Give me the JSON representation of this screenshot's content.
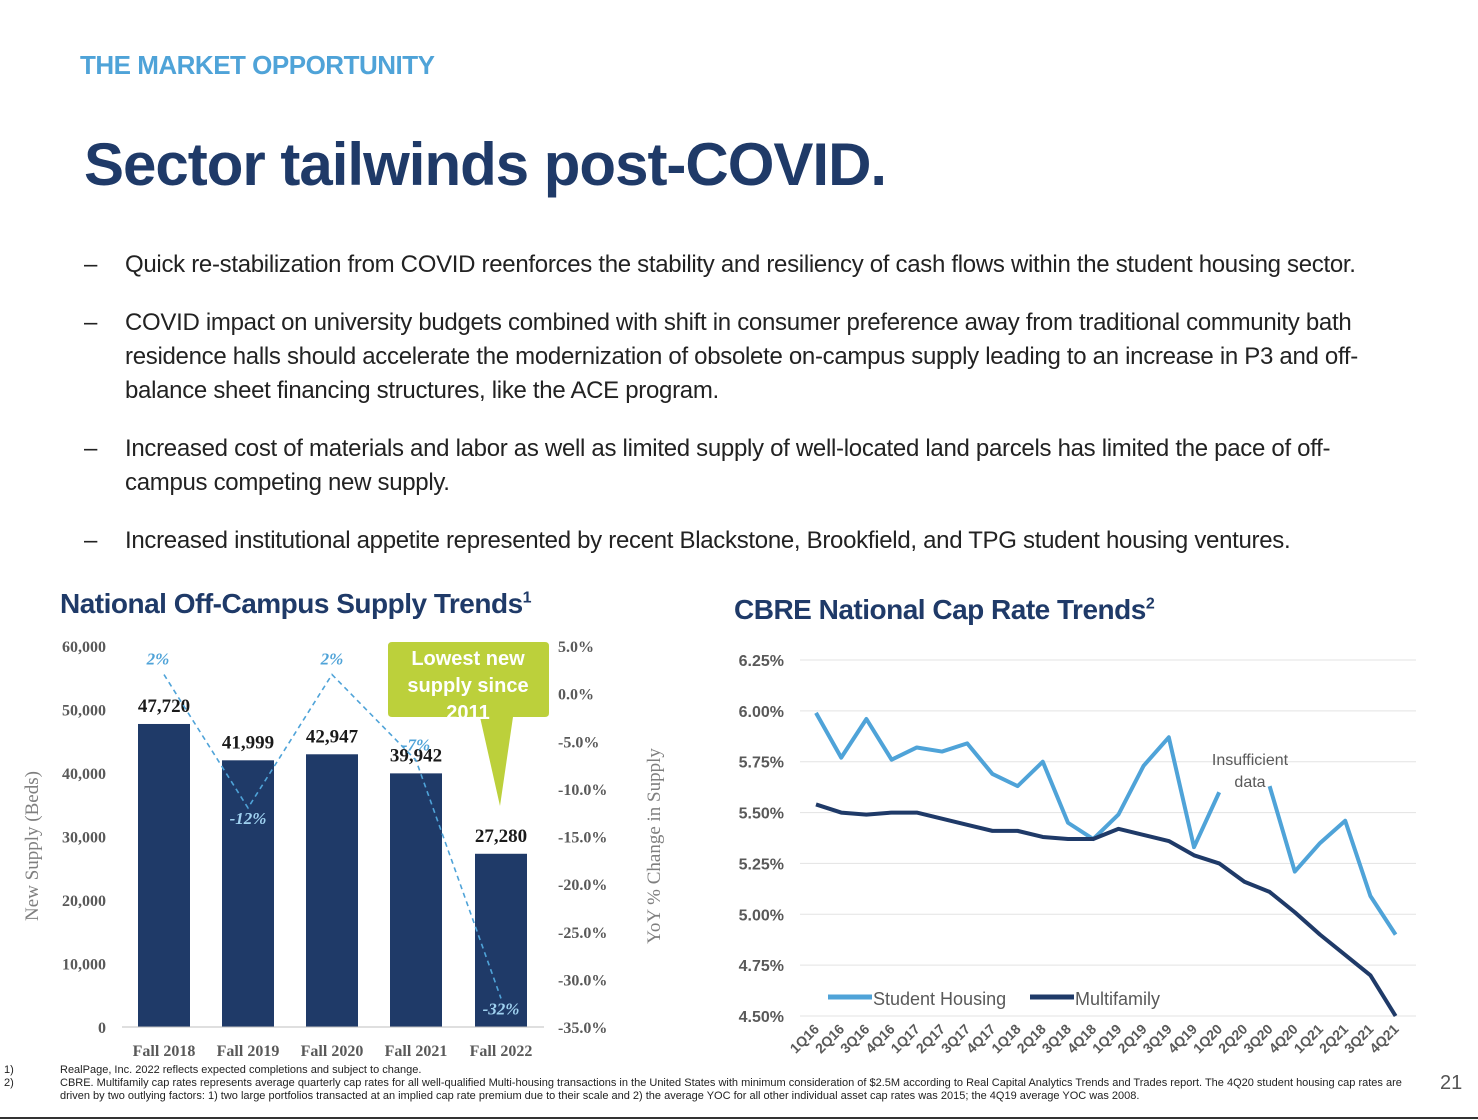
{
  "header": {
    "section_label": "THE MARKET OPPORTUNITY",
    "title": "Sector tailwinds post-COVID."
  },
  "bullets": [
    {
      "marker": "–",
      "text": "Quick re-stabilization from COVID reenforces the stability and resiliency of cash flows within the student housing sector."
    },
    {
      "marker": "–",
      "text": "COVID impact on university budgets combined with shift in consumer preference away from traditional community bath residence halls should accelerate the modernization of obsolete on-campus supply leading to an increase in P3 and off-balance sheet financing structures, like the ACE program."
    },
    {
      "marker": "–",
      "text": "Increased cost of materials and labor as well as limited supply of well-located land parcels has limited the pace of off-campus competing new supply."
    },
    {
      "marker": "–",
      "text": "Increased institutional appetite represented by recent Blackstone, Brookfield, and TPG student housing ventures."
    }
  ],
  "chart_data": [
    {
      "type": "bar",
      "title": "National Off-Campus Supply Trends",
      "title_footnote": "1",
      "categories": [
        "Fall 2018",
        "Fall 2019",
        "Fall 2020",
        "Fall 2021",
        "Fall 2022"
      ],
      "series": [
        {
          "values": [
            47720,
            41999,
            42947,
            39942,
            27280
          ],
          "labels": [
            "47,720",
            "41,999",
            "42,947",
            "39,942",
            "27,280"
          ]
        }
      ],
      "yoy_line": {
        "values": [
          2,
          -12,
          2,
          -7,
          -32
        ],
        "labels": [
          "2%",
          "-12%",
          "2%",
          "-7%",
          "-32%"
        ]
      },
      "ylabel": "New Supply (Beds)",
      "ylim": [
        0,
        60000
      ],
      "yticks": [
        0,
        10000,
        20000,
        30000,
        40000,
        50000,
        60000
      ],
      "ytick_labels": [
        "0",
        "10,000",
        "20,000",
        "30,000",
        "40,000",
        "50,000",
        "60,000"
      ],
      "y2label": "YoY % Change in Supply",
      "y2lim": [
        -35,
        5
      ],
      "y2ticks": [
        5,
        0,
        -5,
        -10,
        -15,
        -20,
        -25,
        -30,
        -35
      ],
      "y2tick_labels": [
        "5.0%",
        "0.0%",
        "-5.0%",
        "-10.0%",
        "-15.0%",
        "-20.0%",
        "-25.0%",
        "-30.0%",
        "-35.0%"
      ],
      "callout": {
        "lines": [
          "Lowest new",
          "supply since",
          "2011"
        ]
      },
      "grid": false,
      "colors": {
        "bar": "#1f3a68",
        "line": "#4fa3d8",
        "callout": "#bcd03b"
      }
    },
    {
      "type": "line",
      "title": "CBRE National Cap Rate Trends",
      "title_footnote": "2",
      "x": [
        "1Q16",
        "2Q16",
        "3Q16",
        "4Q16",
        "1Q17",
        "2Q17",
        "3Q17",
        "4Q17",
        "1Q18",
        "2Q18",
        "3Q18",
        "4Q18",
        "1Q19",
        "2Q19",
        "3Q19",
        "4Q19",
        "1Q20",
        "2Q20",
        "3Q20",
        "4Q20",
        "1Q21",
        "2Q21",
        "3Q21",
        "4Q21"
      ],
      "series": [
        {
          "name": "Student Housing",
          "color": "#4fa3d8",
          "values": [
            5.99,
            5.77,
            5.96,
            5.76,
            5.82,
            5.8,
            5.84,
            5.69,
            5.63,
            5.75,
            5.45,
            5.37,
            5.49,
            5.73,
            5.87,
            5.33,
            5.6,
            null,
            5.63,
            5.21,
            5.35,
            5.46,
            5.09,
            4.9
          ]
        },
        {
          "name": "Multifamily",
          "color": "#1f3a68",
          "values": [
            5.54,
            5.5,
            5.49,
            5.5,
            5.5,
            5.47,
            5.44,
            5.41,
            5.41,
            5.38,
            5.37,
            5.37,
            5.42,
            5.39,
            5.36,
            5.29,
            5.25,
            5.16,
            5.11,
            5.01,
            4.9,
            4.8,
            4.7,
            4.5
          ]
        }
      ],
      "ylim": [
        4.5,
        6.25
      ],
      "yticks": [
        4.5,
        4.75,
        5.0,
        5.25,
        5.5,
        5.75,
        6.0,
        6.25
      ],
      "ytick_labels": [
        "4.50%",
        "4.75%",
        "5.00%",
        "5.25%",
        "5.50%",
        "5.75%",
        "6.00%",
        "6.25%"
      ],
      "annotation": {
        "lines": [
          "Insufficient",
          "data"
        ]
      },
      "grid": true,
      "legend": "bottom-left"
    }
  ],
  "footnotes": [
    {
      "num": "1)",
      "text": "RealPage, Inc. 2022 reflects expected completions and subject to change."
    },
    {
      "num": "2)",
      "text": "CBRE. Multifamily cap rates represents average quarterly cap rates for all well-qualified Multi-housing transactions in the United States with minimum consideration of $2.5M according to Real Capital Analytics Trends and Trades report. The 4Q20 student housing cap rates are driven by two outlying factors: 1) two large portfolios transacted at an implied cap rate premium due to their scale and 2) the average YOC for all other individual asset cap rates was 2015; the 4Q19 average YOC was 2008."
    }
  ],
  "page_number": "21"
}
